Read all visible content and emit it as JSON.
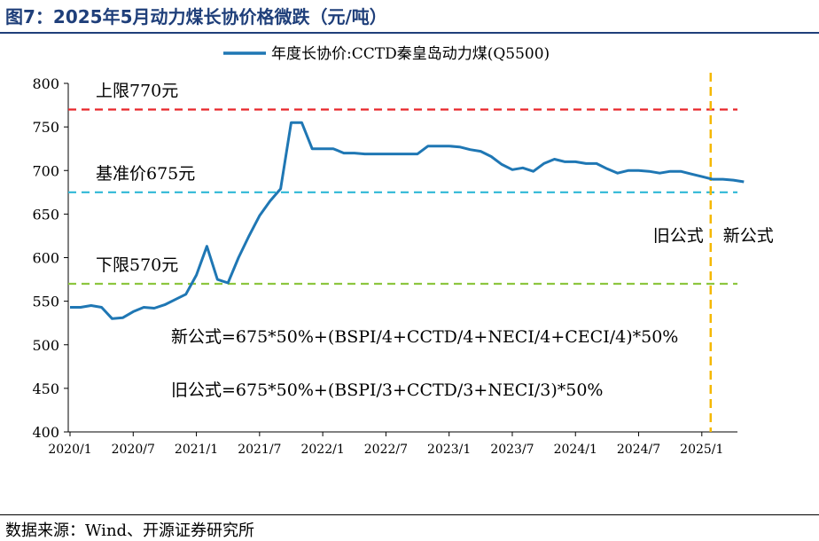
{
  "header": {
    "title": "图7：2025年5月动力煤长协价格微跌（元/吨）"
  },
  "footer": {
    "source": "数据来源：Wind、开源证券研究所"
  },
  "colors": {
    "series": "#1f77b4",
    "upper": "#e8262a",
    "base": "#2fb8d6",
    "lower": "#8dc63f",
    "divider": "#f5b800",
    "title": "#1f3f7a"
  },
  "chart_data": {
    "type": "line",
    "ylim": [
      400,
      800
    ],
    "yticks": [
      400,
      450,
      500,
      550,
      600,
      650,
      700,
      750,
      800
    ],
    "x_months": [
      "2020/1",
      "2020/2",
      "2020/3",
      "2020/4",
      "2020/5",
      "2020/6",
      "2020/7",
      "2020/8",
      "2020/9",
      "2020/10",
      "2020/11",
      "2020/12",
      "2021/1",
      "2021/2",
      "2021/3",
      "2021/4",
      "2021/5",
      "2021/6",
      "2021/7",
      "2021/8",
      "2021/9",
      "2021/10",
      "2021/11",
      "2021/12",
      "2022/1",
      "2022/2",
      "2022/3",
      "2022/4",
      "2022/5",
      "2022/6",
      "2022/7",
      "2022/8",
      "2022/9",
      "2022/10",
      "2022/11",
      "2022/12",
      "2023/1",
      "2023/2",
      "2023/3",
      "2023/4",
      "2023/5",
      "2023/6",
      "2023/7",
      "2023/8",
      "2023/9",
      "2023/10",
      "2023/11",
      "2023/12",
      "2024/1",
      "2024/2",
      "2024/3",
      "2024/4",
      "2024/5",
      "2024/6",
      "2024/7",
      "2024/8",
      "2024/9",
      "2024/10",
      "2024/11",
      "2024/12",
      "2025/1",
      "2025/2",
      "2025/3",
      "2025/4",
      "2025/5"
    ],
    "xticks": [
      "2020/1",
      "2020/7",
      "2021/1",
      "2021/7",
      "2022/1",
      "2022/7",
      "2023/1",
      "2023/7",
      "2024/1",
      "2024/7",
      "2025/1"
    ],
    "series": [
      {
        "name": "年度长协价:CCTD秦皇岛动力煤(Q5500)",
        "values": [
          543,
          543,
          545,
          543,
          530,
          531,
          538,
          543,
          542,
          546,
          552,
          558,
          580,
          613,
          575,
          571,
          600,
          625,
          648,
          665,
          679,
          755,
          755,
          725,
          725,
          725,
          720,
          720,
          719,
          719,
          719,
          719,
          719,
          719,
          728,
          728,
          728,
          727,
          724,
          722,
          716,
          707,
          701,
          703,
          699,
          708,
          713,
          710,
          710,
          708,
          708,
          702,
          697,
          700,
          700,
          699,
          697,
          699,
          699,
          696,
          693,
          690,
          690,
          689,
          687
        ]
      }
    ],
    "reference_lines": [
      {
        "label": "上限770元",
        "value": 770
      },
      {
        "label": "基准价675元",
        "value": 675
      },
      {
        "label": "下限570元",
        "value": 570
      }
    ],
    "divider_at": "2025/1",
    "region_labels": {
      "old": "旧公式",
      "new": "新公式"
    },
    "annotations": [
      "新公式=675*50%+(BSPI/4+CCTD/4+NECI/4+CECI/4)*50%",
      "旧公式=675*50%+(BSPI/3+CCTD/3+NECI/3)*50%"
    ],
    "legend_position": "top-center",
    "grid": false
  }
}
